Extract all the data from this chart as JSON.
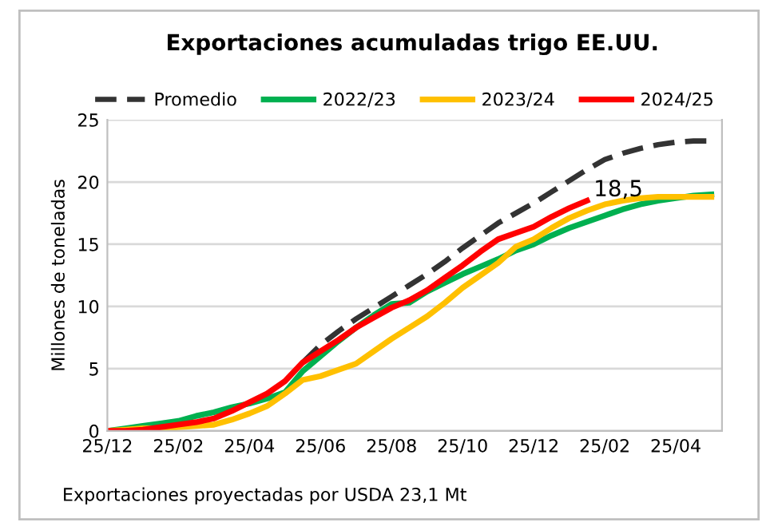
{
  "chart_data": {
    "type": "line",
    "title": "Exportaciones acumuladas trigo EE.UU.",
    "ylabel": "Millones de toneladas",
    "annotations": [
      {
        "text": "18,5",
        "y": 18.5
      },
      "Exportaciones proyectadas por USDA 23,1 Mt"
    ],
    "categories": [
      "25/12",
      null,
      null,
      null,
      "25/02",
      null,
      null,
      null,
      "25/04",
      null,
      null,
      null,
      "25/06",
      null,
      null,
      null,
      "25/08",
      null,
      null,
      null,
      "25/10",
      null,
      null,
      null,
      "25/12",
      null,
      null,
      null,
      "25/02",
      null,
      null,
      null,
      "25/04",
      null,
      null
    ],
    "ylim": [
      0,
      25
    ],
    "yticks": [
      0,
      5,
      10,
      15,
      20,
      25
    ],
    "grid": "y",
    "legend": "top",
    "marker": "none",
    "series": [
      {
        "name": "Promedio",
        "color": "#333333",
        "line_style": "dashed",
        "values": [
          null,
          null,
          null,
          null,
          null,
          null,
          null,
          null,
          null,
          null,
          null,
          5.5,
          6.9,
          8.0,
          9.0,
          9.9,
          10.8,
          11.7,
          12.6,
          13.6,
          14.7,
          15.7,
          16.7,
          17.5,
          18.3,
          19.2,
          20.1,
          21.0,
          21.8,
          22.3,
          22.7,
          23.0,
          23.2,
          23.3,
          23.3
        ]
      },
      {
        "name": "2022/23",
        "color": "#00b050",
        "line_style": "solid",
        "values": [
          0,
          0.2,
          0.4,
          0.6,
          0.8,
          1.2,
          1.5,
          1.9,
          2.2,
          2.6,
          3.1,
          4.8,
          6.0,
          7.2,
          8.3,
          9.3,
          10.2,
          10.3,
          11.2,
          11.9,
          12.6,
          13.2,
          13.8,
          14.5,
          15.0,
          15.7,
          16.3,
          16.8,
          17.3,
          17.8,
          18.2,
          18.5,
          18.7,
          18.9,
          19.0
        ]
      },
      {
        "name": "2023/24",
        "color": "#ffc000",
        "line_style": "solid",
        "values": [
          0,
          0.1,
          0.2,
          0.2,
          0.3,
          0.4,
          0.5,
          0.9,
          1.4,
          2.0,
          3.0,
          4.1,
          4.4,
          4.9,
          5.4,
          6.4,
          7.4,
          8.3,
          9.2,
          10.3,
          11.5,
          12.5,
          13.5,
          14.8,
          15.4,
          16.3,
          17.1,
          17.7,
          18.2,
          18.5,
          18.7,
          18.8,
          18.8,
          18.8,
          18.8
        ]
      },
      {
        "name": "2024/25",
        "color": "#ff0000",
        "line_style": "solid",
        "values": [
          0,
          0.0,
          0.1,
          0.3,
          0.5,
          0.7,
          1.0,
          1.6,
          2.3,
          3.0,
          4.0,
          5.5,
          6.4,
          7.3,
          8.3,
          9.1,
          9.9,
          10.5,
          11.3,
          12.3,
          13.3,
          14.4,
          15.4,
          15.9,
          16.4,
          17.2,
          17.9,
          18.5,
          null,
          null,
          null,
          null,
          null,
          null,
          null
        ]
      }
    ]
  }
}
